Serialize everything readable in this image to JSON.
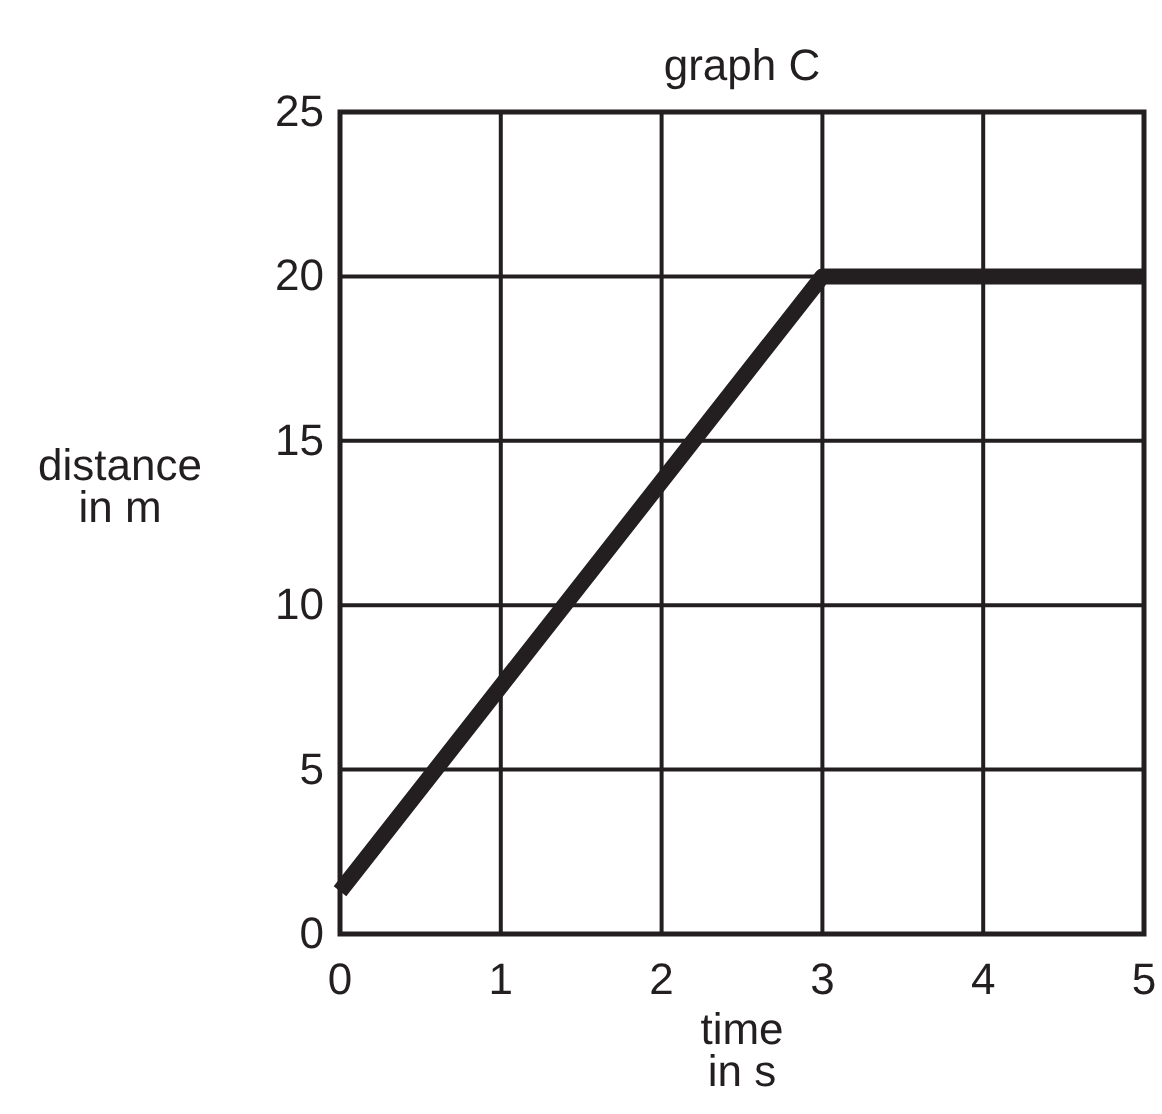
{
  "chart_data": {
    "type": "line",
    "title": "graph C",
    "xlabel": "time\nin s",
    "ylabel": "distance\nin m",
    "x": [
      0,
      3,
      5
    ],
    "series": [
      {
        "color": "#231f20",
        "values": [
          1.3,
          20,
          20
        ]
      }
    ],
    "xlim": [
      0,
      5
    ],
    "xticks": [
      0,
      1,
      2,
      3,
      4,
      5
    ],
    "ylim": [
      0,
      25
    ],
    "yticks": [
      0,
      5,
      10,
      15,
      20,
      25
    ],
    "grid": true,
    "marker": "none",
    "line_style": "solid"
  }
}
